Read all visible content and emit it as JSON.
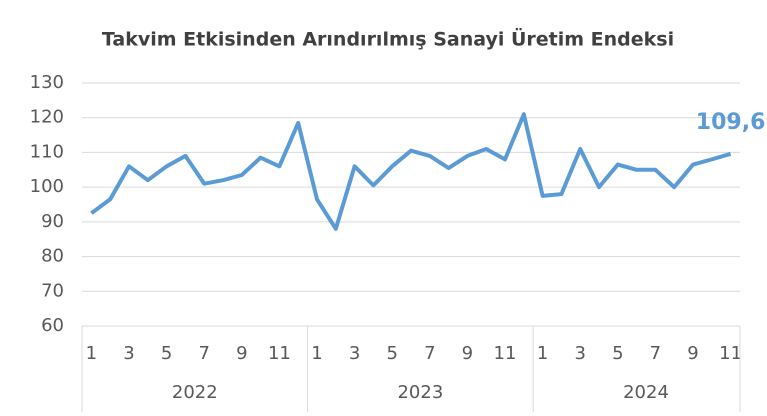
{
  "chart_data": {
    "type": "line",
    "title": "Takvim Etkisinden Arındırılmış Sanayi Üretim Endeksi",
    "categories": [
      "1",
      null,
      "3",
      null,
      "5",
      null,
      "7",
      null,
      "9",
      null,
      "11",
      null,
      "1",
      null,
      "3",
      null,
      "5",
      null,
      "7",
      null,
      "9",
      null,
      "11",
      null,
      "1",
      null,
      "3",
      null,
      "5",
      null,
      "7",
      null,
      "9",
      null,
      "11"
    ],
    "groups": [
      "2022",
      "2023",
      "2024"
    ],
    "series": [
      {
        "name": "Sanayi Üretim Endeksi",
        "color": "#5b9bd5",
        "values": [
          92.5,
          96.5,
          106,
          102,
          106,
          109,
          101,
          102,
          103.5,
          108.5,
          106,
          118.5,
          96.5,
          88,
          106,
          100.5,
          106,
          110.5,
          109,
          105.5,
          109,
          111,
          108,
          121,
          97.5,
          98,
          111,
          100,
          106.5,
          105,
          105,
          100,
          106.5,
          108,
          109.6
        ],
        "value_labels": [
          null,
          null,
          null,
          null,
          null,
          null,
          null,
          null,
          null,
          null,
          null,
          null,
          null,
          null,
          null,
          null,
          null,
          null,
          null,
          null,
          null,
          null,
          null,
          null,
          null,
          null,
          null,
          null,
          null,
          null,
          null,
          null,
          null,
          null,
          "109,6"
        ]
      }
    ],
    "ylim": [
      60,
      130
    ],
    "yticks": [
      60,
      70,
      80,
      90,
      100,
      110,
      120,
      130
    ],
    "grid": true
  }
}
